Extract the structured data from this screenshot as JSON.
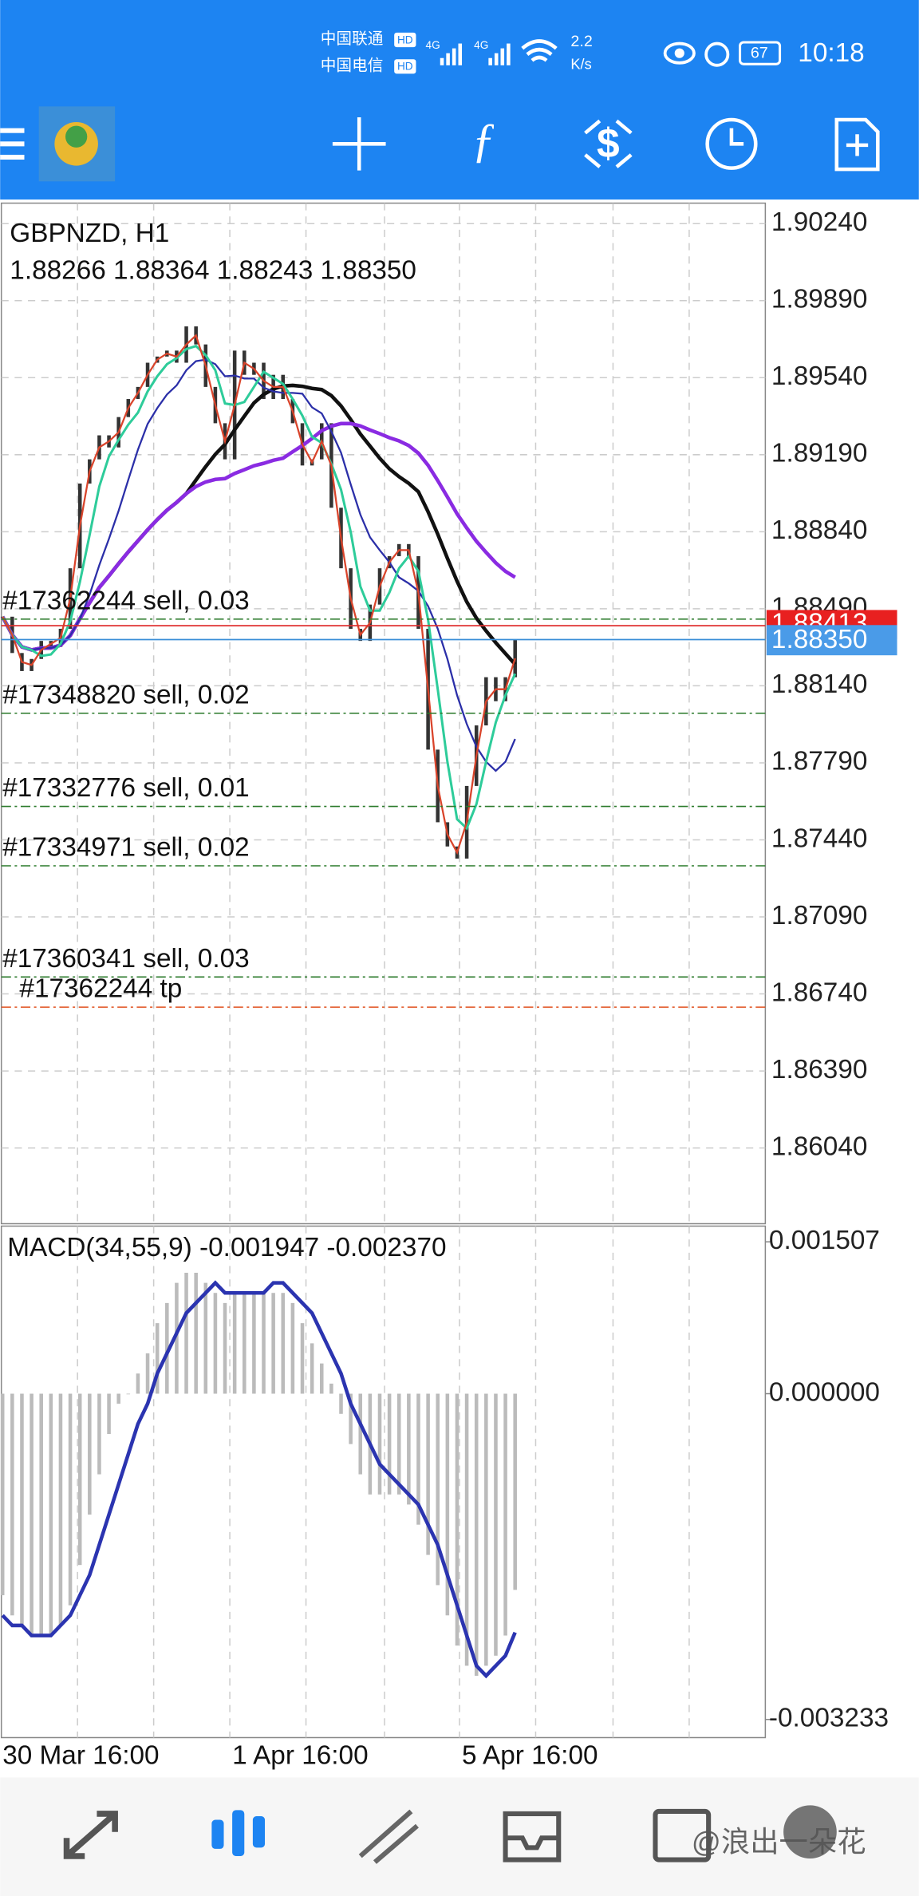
{
  "status_bar": {
    "carriers": [
      "中国联通",
      "中国电信"
    ],
    "hd": "HD",
    "network": "4G",
    "speed": "2.2",
    "speed_unit": "K/s",
    "battery": "67",
    "time": "10:18"
  },
  "chart": {
    "symbol": "GBPNZD, H1",
    "ohlc": "1.88266 1.88364 1.88243 1.88350",
    "ylim": [
      1.85696,
      1.90333
    ],
    "yticks": [
      {
        "value": 1.9024,
        "label": "1.90240"
      },
      {
        "value": 1.8989,
        "label": "1.89890"
      },
      {
        "value": 1.8954,
        "label": "1.89540"
      },
      {
        "value": 1.8919,
        "label": "1.89190"
      },
      {
        "value": 1.8884,
        "label": "1.88840"
      },
      {
        "value": 1.8849,
        "label": "1.88490"
      },
      {
        "value": 1.8814,
        "label": "1.88140"
      },
      {
        "value": 1.8779,
        "label": "1.87790"
      },
      {
        "value": 1.8744,
        "label": "1.87440"
      },
      {
        "value": 1.8709,
        "label": "1.87090"
      },
      {
        "value": 1.8674,
        "label": "1.86740"
      },
      {
        "value": 1.8639,
        "label": "1.86390"
      },
      {
        "value": 1.8604,
        "label": "1.86040"
      }
    ],
    "ask": {
      "value": 1.88413,
      "label": "1.88413"
    },
    "bid": {
      "value": 1.8835,
      "label": "1.88350"
    },
    "orders": [
      {
        "label": "#17362244 sell, 0.03",
        "price": 1.88443
      },
      {
        "label": "#17348820 sell, 0.02",
        "price": 1.88015
      },
      {
        "label": "#17332776 sell, 0.01",
        "price": 1.87592
      },
      {
        "label": "#17334971 sell, 0.02",
        "price": 1.87322
      },
      {
        "label": "#17360341 sell, 0.03",
        "price": 1.86817
      }
    ],
    "tp": {
      "label": "#17362244 tp",
      "price": 1.8668
    },
    "closes": [
      1.88454,
      1.88289,
      1.88207,
      1.88262,
      1.88344,
      1.88317,
      1.88399,
      1.88674,
      1.89059,
      1.89169,
      1.89278,
      1.89223,
      1.89361,
      1.89443,
      1.89498,
      1.89608,
      1.89636,
      1.89663,
      1.89608,
      1.89773,
      1.89691,
      1.89498,
      1.89333,
      1.89169,
      1.89663,
      1.89553,
      1.89608,
      1.89443,
      1.89553,
      1.89443,
      1.89333,
      1.89141,
      1.89169,
      1.89333,
      1.88949,
      1.88674,
      1.88399,
      1.88344,
      1.88509,
      1.88674,
      1.88729,
      1.88784,
      1.88729,
      1.88399,
      1.8785,
      1.8752,
      1.8741,
      1.87355,
      1.87685,
      1.8796,
      1.88179,
      1.8807,
      1.88179,
      1.8835
    ]
  },
  "macd": {
    "label": "MACD(34,55,9) -0.001947 -0.002370",
    "ylim": [
      -0.003413,
      0.001663
    ],
    "yticks": [
      {
        "value": 0.001507,
        "label": "0.001507"
      },
      {
        "value": 0,
        "label": "0.000000"
      },
      {
        "value": -0.003233,
        "label": "-0.003233"
      }
    ],
    "histogram": [
      -0.002,
      -0.0022,
      -0.0023,
      -0.0024,
      -0.0024,
      -0.0024,
      -0.0023,
      -0.0021,
      -0.0017,
      -0.0012,
      -0.0008,
      -0.0004,
      -0.0001,
      0,
      0.0002,
      0.0004,
      0.0007,
      0.0009,
      0.0011,
      0.0012,
      0.0012,
      0.0011,
      0.001,
      0.0009,
      0.001,
      0.001,
      0.001,
      0.001,
      0.001,
      0.001,
      0.0009,
      0.0007,
      0.0005,
      0.0003,
      0.0001,
      -0.0002,
      -0.0005,
      -0.0008,
      -0.001,
      -0.001,
      -0.001,
      -0.001,
      -0.0011,
      -0.0013,
      -0.0016,
      -0.0019,
      -0.0022,
      -0.0025,
      -0.0027,
      -0.0028,
      -0.0027,
      -0.0026,
      -0.0024,
      -0.001947
    ],
    "signal": [
      -0.0022,
      -0.0023,
      -0.0023,
      -0.0024,
      -0.0024,
      -0.0024,
      -0.0023,
      -0.0022,
      -0.002,
      -0.0018,
      -0.0015,
      -0.0012,
      -0.0009,
      -0.0006,
      -0.0003,
      -0.0001,
      0.0002,
      0.0004,
      0.0006,
      0.0008,
      0.0009,
      0.001,
      0.0011,
      0.001,
      0.001,
      0.001,
      0.001,
      0.001,
      0.0011,
      0.0011,
      0.001,
      0.0009,
      0.0008,
      0.0006,
      0.0004,
      0.0002,
      -0.0001,
      -0.0003,
      -0.0005,
      -0.0007,
      -0.0008,
      -0.0009,
      -0.001,
      -0.0011,
      -0.0013,
      -0.0015,
      -0.0018,
      -0.0021,
      -0.0024,
      -0.0027,
      -0.0028,
      -0.0027,
      -0.0026,
      -0.00237
    ]
  },
  "time_axis": [
    "30 Mar 16:00",
    "1 Apr 16:00",
    "5 Apr 16:00"
  ],
  "watermark": "@浪出一朵花"
}
